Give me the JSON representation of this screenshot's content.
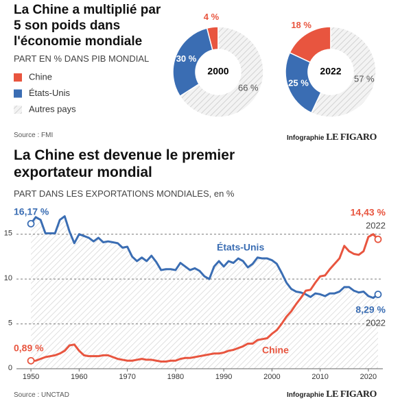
{
  "chart_data": [
    {
      "type": "pie",
      "title": "La Chine a multiplié par 5 son poids dans l'économie mondiale",
      "subtitle": "PART EN % DANS PIB MONDIAL",
      "categories": [
        "Chine",
        "États-Unis",
        "Autres pays"
      ],
      "colors": [
        "#e8553f",
        "#3a6db3",
        "#e4e4e4"
      ],
      "series": [
        {
          "name": "2000",
          "values": [
            4,
            30,
            66
          ],
          "value_labels": [
            "4 %",
            "30 %",
            "66 %"
          ]
        },
        {
          "name": "2022",
          "values": [
            18,
            25,
            57
          ],
          "value_labels": [
            "18 %",
            "25 %",
            "57 %"
          ]
        }
      ],
      "source": "Source : FMI",
      "credit": [
        "Infographie",
        "LE FIGARO"
      ]
    },
    {
      "type": "line",
      "title": "La Chine est devenue le premier exportateur mondial",
      "subtitle": "PART DANS LES EXPORTATIONS MONDIALES, en %",
      "x": [
        1950,
        1951,
        1952,
        1953,
        1954,
        1955,
        1956,
        1957,
        1958,
        1959,
        1960,
        1961,
        1962,
        1963,
        1964,
        1965,
        1966,
        1967,
        1968,
        1969,
        1970,
        1971,
        1972,
        1973,
        1974,
        1975,
        1976,
        1977,
        1978,
        1979,
        1980,
        1981,
        1982,
        1983,
        1984,
        1985,
        1986,
        1987,
        1988,
        1989,
        1990,
        1991,
        1992,
        1993,
        1994,
        1995,
        1996,
        1997,
        1998,
        1999,
        2000,
        2001,
        2002,
        2003,
        2004,
        2005,
        2006,
        2007,
        2008,
        2009,
        2010,
        2011,
        2012,
        2013,
        2014,
        2015,
        2016,
        2017,
        2018,
        2019,
        2020,
        2021,
        2022
      ],
      "xlim": [
        1947,
        2023
      ],
      "xticks": [
        1950,
        1960,
        1970,
        1980,
        1990,
        2000,
        2010,
        2020
      ],
      "ylim": [
        0,
        17.5
      ],
      "yticks": [
        0,
        5,
        10,
        15
      ],
      "grid": true,
      "series": [
        {
          "name": "États-Unis",
          "color": "#3a6db3",
          "values": [
            16.17,
            16.9,
            16.6,
            15.1,
            15.1,
            15.1,
            16.6,
            17.0,
            15.3,
            14.0,
            15.0,
            14.8,
            14.6,
            14.2,
            14.6,
            14.1,
            14.2,
            14.1,
            14.0,
            13.5,
            13.6,
            12.5,
            12.0,
            12.4,
            12.0,
            12.6,
            11.9,
            11.0,
            11.1,
            11.1,
            11.0,
            11.8,
            11.4,
            11.0,
            11.2,
            10.9,
            10.3,
            10.0,
            11.4,
            12.0,
            11.4,
            12.0,
            11.8,
            12.3,
            12.0,
            11.3,
            11.7,
            12.4,
            12.3,
            12.3,
            12.1,
            11.7,
            10.7,
            9.6,
            8.9,
            8.6,
            8.5,
            8.3,
            8.0,
            8.4,
            8.3,
            8.1,
            8.4,
            8.4,
            8.6,
            9.1,
            9.1,
            8.7,
            8.5,
            8.6,
            8.1,
            7.9,
            8.29
          ],
          "value_labels": [
            "16,17 %",
            null,
            null,
            null,
            null,
            null,
            null,
            null,
            null,
            null,
            null,
            null,
            null,
            null,
            null,
            null,
            null,
            null,
            null,
            null,
            null,
            null,
            null,
            null,
            null,
            null,
            null,
            null,
            null,
            null,
            null,
            null,
            null,
            null,
            null,
            null,
            null,
            null,
            null,
            null,
            null,
            null,
            null,
            null,
            null,
            null,
            null,
            null,
            null,
            null,
            null,
            null,
            null,
            null,
            null,
            null,
            null,
            null,
            null,
            null,
            null,
            null,
            null,
            null,
            null,
            null,
            null,
            null,
            null,
            null,
            null,
            null,
            "8,29 %"
          ]
        },
        {
          "name": "Chine",
          "color": "#e8553f",
          "values": [
            0.89,
            0.9,
            1.1,
            1.3,
            1.4,
            1.5,
            1.7,
            2.0,
            2.6,
            2.7,
            2.0,
            1.5,
            1.4,
            1.4,
            1.4,
            1.5,
            1.5,
            1.3,
            1.1,
            1.0,
            0.9,
            0.9,
            1.0,
            1.1,
            1.0,
            1.0,
            0.9,
            0.8,
            0.8,
            0.9,
            0.9,
            1.1,
            1.2,
            1.2,
            1.3,
            1.4,
            1.5,
            1.6,
            1.7,
            1.7,
            1.8,
            2.0,
            2.1,
            2.3,
            2.5,
            2.8,
            2.8,
            3.2,
            3.3,
            3.4,
            3.9,
            4.3,
            5.0,
            5.8,
            6.4,
            7.2,
            7.9,
            8.7,
            8.8,
            9.6,
            10.3,
            10.4,
            11.1,
            11.7,
            12.3,
            13.7,
            13.1,
            12.8,
            12.7,
            13.1,
            14.7,
            15.0,
            14.43
          ],
          "value_labels": [
            "0,89 %",
            null,
            null,
            null,
            null,
            null,
            null,
            null,
            null,
            null,
            null,
            null,
            null,
            null,
            null,
            null,
            null,
            null,
            null,
            null,
            null,
            null,
            null,
            null,
            null,
            null,
            null,
            null,
            null,
            null,
            null,
            null,
            null,
            null,
            null,
            null,
            null,
            null,
            null,
            null,
            null,
            null,
            null,
            null,
            null,
            null,
            null,
            null,
            null,
            null,
            null,
            null,
            null,
            null,
            null,
            null,
            null,
            null,
            null,
            null,
            null,
            null,
            null,
            null,
            null,
            null,
            null,
            null,
            null,
            null,
            null,
            null,
            "14,43 %"
          ]
        }
      ],
      "source": "Source : UNCTAD",
      "credit": [
        "Infographie",
        "LE FIGARO"
      ]
    }
  ]
}
